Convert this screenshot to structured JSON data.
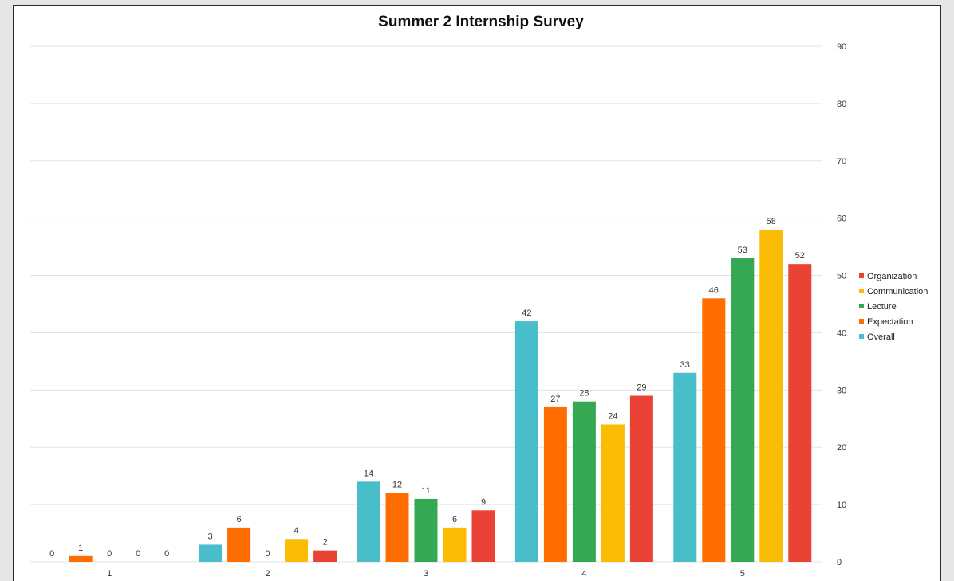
{
  "chart_data": {
    "type": "bar",
    "title": "Summer 2 Internship Survey",
    "categories": [
      "1",
      "2",
      "3",
      "4",
      "5"
    ],
    "series": [
      {
        "name": "Overall",
        "color": "#47bec9",
        "values": [
          0,
          3,
          14,
          42,
          33
        ]
      },
      {
        "name": "Expectation",
        "color": "#ff6d00",
        "values": [
          1,
          6,
          12,
          27,
          46
        ]
      },
      {
        "name": "Lecture",
        "color": "#34a853",
        "values": [
          0,
          0,
          11,
          28,
          53
        ]
      },
      {
        "name": "Communication",
        "color": "#fbbc04",
        "values": [
          0,
          4,
          6,
          24,
          58
        ]
      },
      {
        "name": "Organization",
        "color": "#ea4335",
        "values": [
          0,
          2,
          9,
          29,
          52
        ]
      }
    ],
    "ylim": [
      0,
      90
    ],
    "yticks": [
      0,
      10,
      20,
      30,
      40,
      50,
      60,
      70,
      80,
      90
    ],
    "y_axis_side": "right",
    "grid": true,
    "legend_position": "right",
    "legend_order": [
      "Organization",
      "Communication",
      "Lecture",
      "Expectation",
      "Overall"
    ],
    "data_labels": true
  }
}
